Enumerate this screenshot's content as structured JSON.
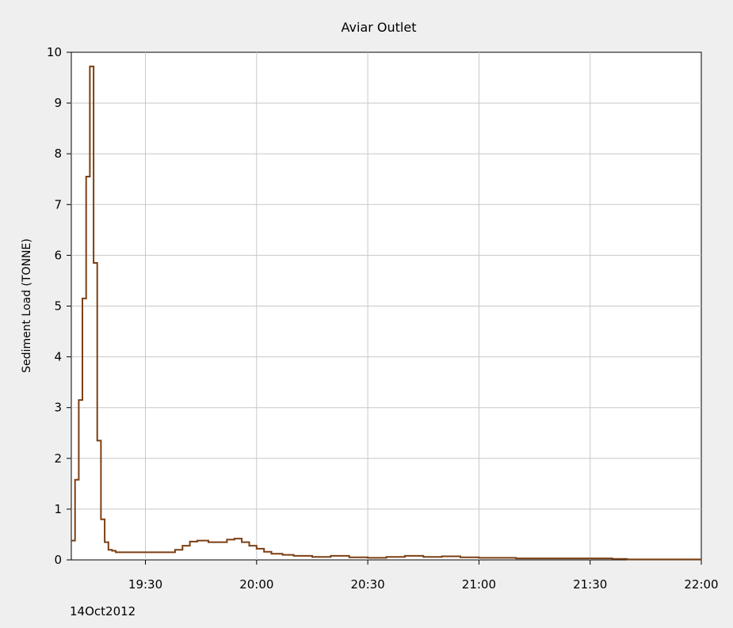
{
  "chart_data": {
    "type": "line",
    "title": "Aviar Outlet",
    "ylabel": "Sediment Load (TONNE)",
    "xlabel": "",
    "date_label": "14Oct2012",
    "ylim": [
      0,
      10
    ],
    "y_ticks": [
      "0",
      "1",
      "2",
      "3",
      "4",
      "5",
      "6",
      "7",
      "8",
      "9",
      "10"
    ],
    "xlim": [
      "19:10",
      "22:00"
    ],
    "x_ticks": [
      "19:30",
      "20:00",
      "20:30",
      "21:00",
      "21:30",
      "22:00"
    ],
    "grid": true,
    "line_color": "#7b3f12",
    "step": true,
    "series": [
      {
        "x": [
          "19:10",
          "19:11",
          "19:12",
          "19:13",
          "19:14",
          "19:15",
          "19:16",
          "19:17",
          "19:18",
          "19:19",
          "19:20",
          "19:21",
          "19:22",
          "19:25",
          "19:30",
          "19:35",
          "19:38",
          "19:40",
          "19:42",
          "19:44",
          "19:47",
          "19:50",
          "19:52",
          "19:54",
          "19:56",
          "19:58",
          "20:00",
          "20:02",
          "20:04",
          "20:07",
          "20:10",
          "20:15",
          "20:20",
          "20:25",
          "20:30",
          "20:35",
          "20:40",
          "20:45",
          "20:50",
          "20:55",
          "21:00",
          "21:10",
          "21:20",
          "21:30",
          "21:36",
          "21:40",
          "22:00"
        ],
        "y": [
          0.38,
          1.58,
          3.15,
          5.15,
          7.55,
          9.72,
          5.85,
          2.35,
          0.8,
          0.35,
          0.2,
          0.18,
          0.15,
          0.15,
          0.15,
          0.15,
          0.2,
          0.28,
          0.36,
          0.38,
          0.35,
          0.35,
          0.4,
          0.42,
          0.35,
          0.28,
          0.22,
          0.16,
          0.12,
          0.1,
          0.08,
          0.06,
          0.08,
          0.05,
          0.04,
          0.06,
          0.08,
          0.06,
          0.07,
          0.05,
          0.04,
          0.03,
          0.03,
          0.03,
          0.02,
          0.01,
          0.01
        ]
      }
    ]
  }
}
